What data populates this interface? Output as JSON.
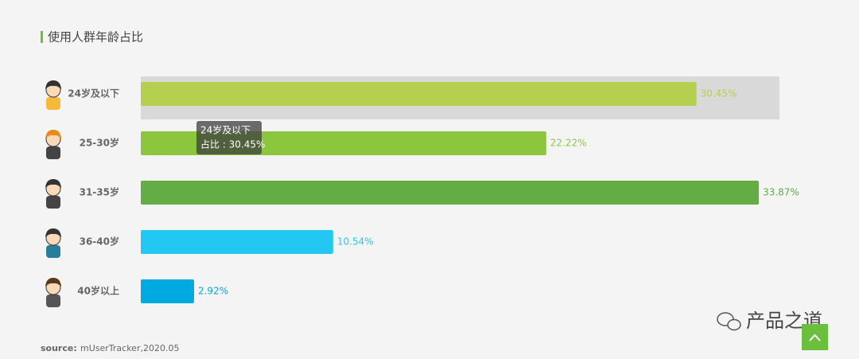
{
  "chart_data": {
    "type": "bar",
    "orientation": "horizontal",
    "title": "使用人群年龄占比",
    "categories": [
      "24岁及以下",
      "25-30岁",
      "31-35岁",
      "36-40岁",
      "40岁以上"
    ],
    "values": [
      30.45,
      22.22,
      33.87,
      10.54,
      2.92
    ],
    "value_labels": [
      "30.45%",
      "22.22%",
      "33.87%",
      "10.54%",
      "2.92%"
    ],
    "colors": [
      "#b5cf4f",
      "#8cc63f",
      "#63ad44",
      "#22c8f2",
      "#00a9e0"
    ],
    "xlim": [
      0,
      35
    ],
    "tooltip": {
      "title": "24岁及以下",
      "text": "占比 : 30.45%"
    },
    "source_label": "source:",
    "source": "mUserTracker,2020.05"
  },
  "watermark": "产品之道"
}
